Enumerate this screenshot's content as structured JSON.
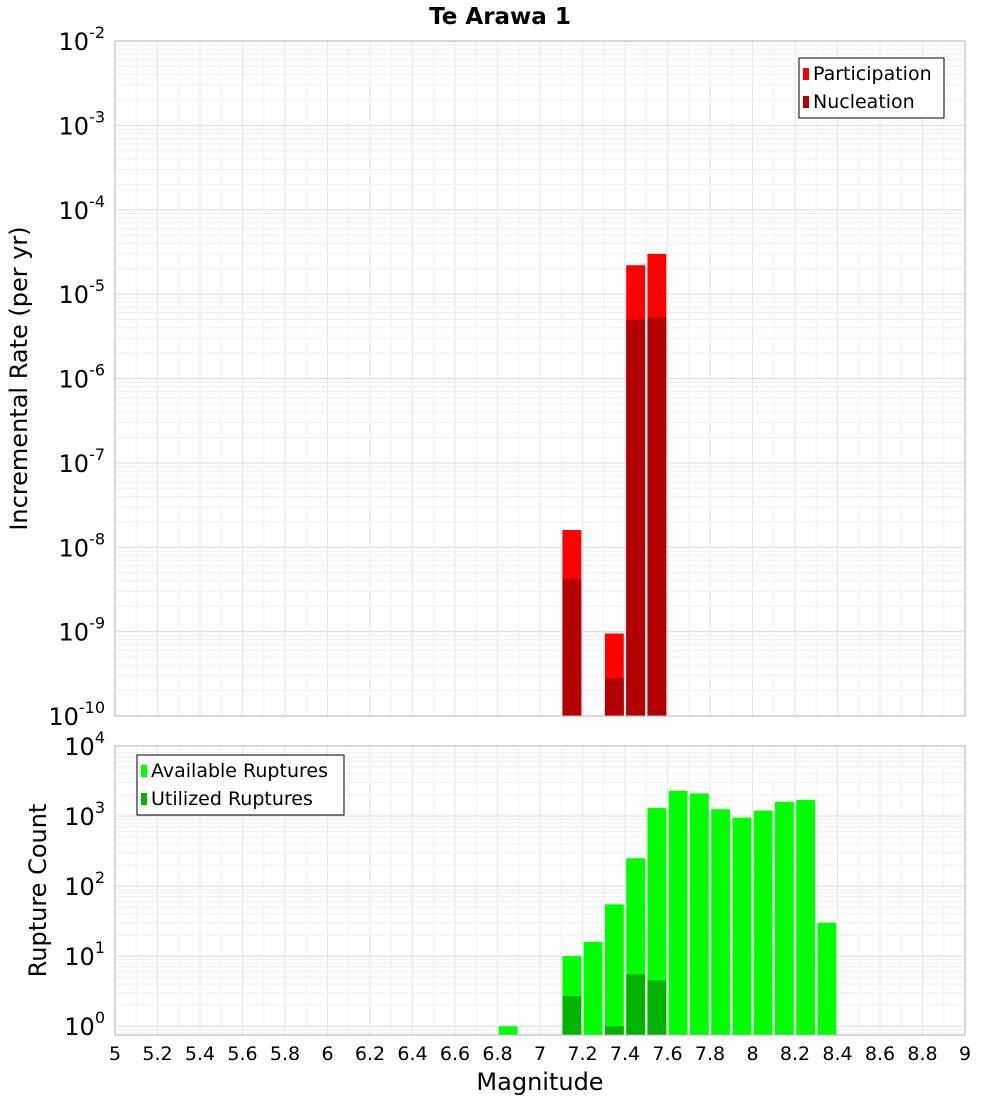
{
  "chart_data": [
    {
      "type": "bar",
      "title": "Te Arawa 1",
      "ylabel": "Incremental Rate (per yr)",
      "xlabel": "",
      "y_scale": "log",
      "ylim": [
        1e-10,
        0.01
      ],
      "xlim": [
        5,
        9
      ],
      "bin_width": 0.1,
      "grid": true,
      "legend_position": "top-right",
      "series": [
        {
          "name": "Participation",
          "color": "#ff0000",
          "x": [
            7.15,
            7.35,
            7.45,
            7.55
          ],
          "values": [
            1.6e-08,
            9.5e-10,
            2.2e-05,
            3e-05
          ]
        },
        {
          "name": "Nucleation",
          "color": "#b30000",
          "x": [
            7.15,
            7.35,
            7.45,
            7.55
          ],
          "values": [
            4.2e-09,
            2.8e-10,
            5e-06,
            5.3e-06
          ]
        }
      ],
      "ytick_labels": [
        {
          "base": "10",
          "exp": "-10"
        },
        {
          "base": "10",
          "exp": "-9"
        },
        {
          "base": "10",
          "exp": "-8"
        },
        {
          "base": "10",
          "exp": "-7"
        },
        {
          "base": "10",
          "exp": "-6"
        },
        {
          "base": "10",
          "exp": "-5"
        },
        {
          "base": "10",
          "exp": "-4"
        },
        {
          "base": "10",
          "exp": "-3"
        },
        {
          "base": "10",
          "exp": "-2"
        }
      ]
    },
    {
      "type": "bar",
      "ylabel": "Rupture Count",
      "xlabel": "Magnitude",
      "y_scale": "log",
      "ylim": [
        0.75,
        10000.0
      ],
      "xlim": [
        5,
        9
      ],
      "bin_width": 0.1,
      "grid": true,
      "legend_position": "top-left",
      "series": [
        {
          "name": "Available Ruptures",
          "color": "#00ff00",
          "x": [
            6.85,
            7.15,
            7.25,
            7.35,
            7.45,
            7.55,
            7.65,
            7.75,
            7.85,
            7.95,
            8.05,
            8.15,
            8.25,
            8.35
          ],
          "values": [
            1,
            10,
            16,
            55,
            250,
            1300,
            2300,
            2100,
            1250,
            950,
            1200,
            1600,
            1700,
            30
          ]
        },
        {
          "name": "Utilized Ruptures",
          "color": "#00b300",
          "x": [
            7.15,
            7.35,
            7.45,
            7.55
          ],
          "values": [
            2.7,
            1,
            5.5,
            4.5
          ]
        }
      ],
      "ytick_labels": [
        {
          "base": "10",
          "exp": "0"
        },
        {
          "base": "10",
          "exp": "1"
        },
        {
          "base": "10",
          "exp": "2"
        },
        {
          "base": "10",
          "exp": "3"
        },
        {
          "base": "10",
          "exp": "4"
        }
      ],
      "xtick_labels": [
        "5",
        "5.2",
        "5.4",
        "5.6",
        "5.8",
        "6",
        "6.2",
        "6.4",
        "6.6",
        "6.8",
        "7",
        "7.2",
        "7.4",
        "7.6",
        "7.8",
        "8",
        "8.2",
        "8.4",
        "8.6",
        "8.8",
        "9"
      ]
    }
  ]
}
